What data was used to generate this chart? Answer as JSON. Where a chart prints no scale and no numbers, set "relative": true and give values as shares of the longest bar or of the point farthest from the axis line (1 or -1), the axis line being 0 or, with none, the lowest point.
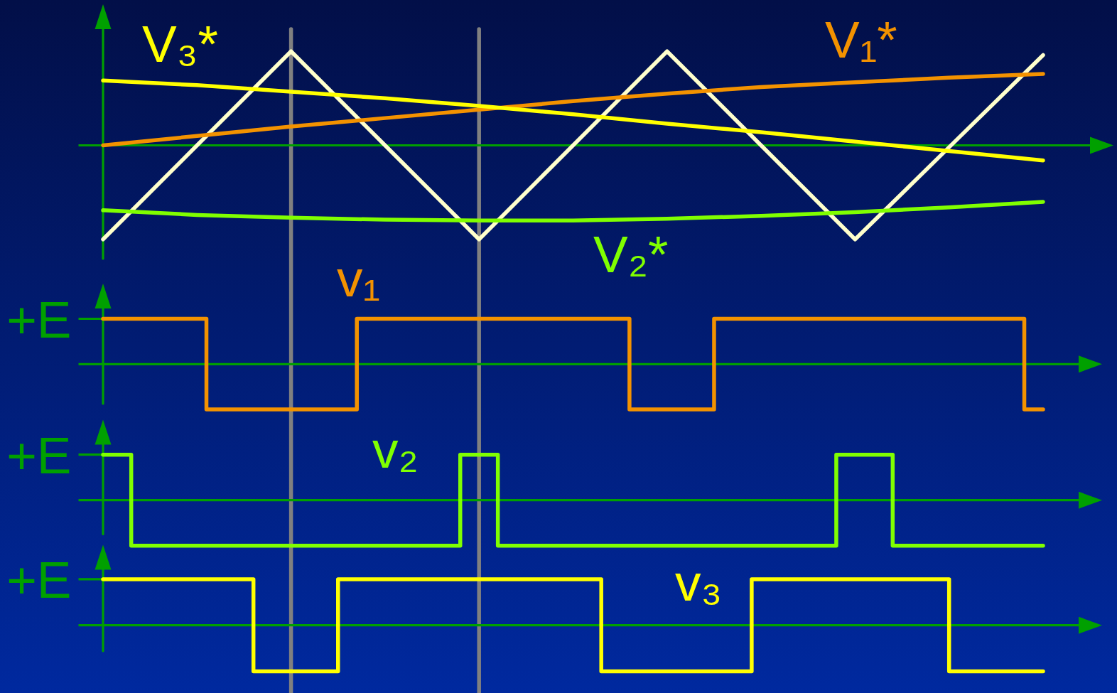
{
  "chart_data": [
    {
      "type": "line",
      "relative": true,
      "categories": [
        null,
        null,
        null,
        null,
        null,
        null,
        null,
        null,
        null,
        null,
        null
      ],
      "ref_lines": [
        {
          "axis": "y",
          "value": 0,
          "color": "#00a000"
        }
      ],
      "series": [
        {
          "color": "#ffffcc",
          "values": [
            -1,
            0,
            1,
            0,
            -1,
            0,
            1,
            0,
            -1,
            -0.02,
            0.96
          ]
        },
        {
          "name": "V₁*",
          "color": "#f39200",
          "values": [
            0,
            0.1,
            0.2,
            0.29,
            0.38,
            0.47,
            0.55,
            0.62,
            0.67,
            0.72,
            0.76
          ]
        },
        {
          "name": "V₂*",
          "color": "#80ff00",
          "values": [
            -0.69,
            -0.74,
            -0.77,
            -0.79,
            -0.8,
            -0.8,
            -0.78,
            -0.75,
            -0.71,
            -0.66,
            -0.6
          ]
        },
        {
          "name": "V₃*",
          "color": "#ffff00",
          "values": [
            0.69,
            0.64,
            0.57,
            0.5,
            0.42,
            0.33,
            0.23,
            0.14,
            0.04,
            -0.06,
            -0.16
          ]
        }
      ]
    },
    {
      "type": "step",
      "relative": true,
      "categories": [
        null,
        null,
        null,
        null,
        null,
        null,
        null,
        null,
        null,
        null,
        null,
        null,
        null,
        null,
        null,
        null,
        null,
        null,
        null,
        null,
        null,
        null,
        null,
        null,
        null,
        null,
        null,
        null,
        null,
        null,
        null,
        null,
        null,
        null,
        null,
        null,
        null,
        null,
        null,
        null,
        null,
        null,
        null,
        null,
        null,
        null,
        null,
        null,
        null,
        null,
        null,
        null,
        null,
        null,
        null,
        null,
        null,
        null,
        null,
        null,
        null,
        null,
        null,
        null,
        null,
        null,
        null,
        null,
        null,
        null,
        null,
        null,
        null,
        null,
        null,
        null,
        null,
        null,
        null,
        null,
        null,
        null,
        null,
        null,
        null,
        null,
        null,
        null,
        null,
        null,
        null,
        null,
        null,
        null,
        null,
        null,
        null,
        null,
        null,
        null,
        null
      ],
      "annotations": [
        "+E"
      ],
      "ref_lines": [
        {
          "axis": "y",
          "value": 0,
          "color": "#00a000"
        }
      ],
      "series": [
        {
          "name": "v₁",
          "color": "#f39200",
          "values": [
            1,
            1,
            1,
            1,
            1,
            1,
            1,
            1,
            1,
            1,
            1,
            -1,
            -1,
            -1,
            -1,
            -1,
            -1,
            -1,
            -1,
            -1,
            -1,
            -1,
            -1,
            -1,
            -1,
            -1,
            -1,
            1,
            1,
            1,
            1,
            1,
            1,
            1,
            1,
            1,
            1,
            1,
            1,
            1,
            1,
            1,
            1,
            1,
            1,
            1,
            1,
            1,
            1,
            1,
            1,
            1,
            1,
            1,
            1,
            1,
            -1,
            -1,
            -1,
            -1,
            -1,
            -1,
            -1,
            -1,
            -1,
            1,
            1,
            1,
            1,
            1,
            1,
            1,
            1,
            1,
            1,
            1,
            1,
            1,
            1,
            1,
            1,
            1,
            1,
            1,
            1,
            1,
            1,
            1,
            1,
            1,
            1,
            1,
            1,
            1,
            1,
            1,
            1,
            1,
            -1,
            -1,
            -1
          ]
        }
      ]
    },
    {
      "type": "step",
      "relative": true,
      "categories": [
        null,
        null,
        null,
        null,
        null,
        null,
        null,
        null,
        null,
        null,
        null,
        null,
        null,
        null,
        null,
        null,
        null,
        null,
        null,
        null,
        null,
        null,
        null,
        null,
        null,
        null,
        null,
        null,
        null,
        null,
        null,
        null,
        null,
        null,
        null,
        null,
        null,
        null,
        null,
        null,
        null,
        null,
        null,
        null,
        null,
        null,
        null,
        null,
        null,
        null,
        null,
        null,
        null,
        null,
        null,
        null,
        null,
        null,
        null,
        null,
        null,
        null,
        null,
        null,
        null,
        null,
        null,
        null,
        null,
        null,
        null,
        null,
        null,
        null,
        null,
        null,
        null,
        null,
        null,
        null,
        null,
        null,
        null,
        null,
        null,
        null,
        null,
        null,
        null,
        null,
        null,
        null,
        null,
        null,
        null,
        null,
        null,
        null,
        null,
        null,
        null
      ],
      "annotations": [
        "+E"
      ],
      "ref_lines": [
        {
          "axis": "y",
          "value": 0,
          "color": "#00a000"
        }
      ],
      "series": [
        {
          "name": "v₂",
          "color": "#80ff00",
          "values": [
            1,
            1,
            1,
            -1,
            -1,
            -1,
            -1,
            -1,
            -1,
            -1,
            -1,
            -1,
            -1,
            -1,
            -1,
            -1,
            -1,
            -1,
            -1,
            -1,
            -1,
            -1,
            -1,
            -1,
            -1,
            -1,
            -1,
            -1,
            -1,
            -1,
            -1,
            -1,
            -1,
            -1,
            -1,
            -1,
            -1,
            -1,
            1,
            1,
            1,
            1,
            -1,
            -1,
            -1,
            -1,
            -1,
            -1,
            -1,
            -1,
            -1,
            -1,
            -1,
            -1,
            -1,
            -1,
            -1,
            -1,
            -1,
            -1,
            -1,
            -1,
            -1,
            -1,
            -1,
            -1,
            -1,
            -1,
            -1,
            -1,
            -1,
            -1,
            -1,
            -1,
            -1,
            -1,
            -1,
            -1,
            1,
            1,
            1,
            1,
            1,
            1,
            -1,
            -1,
            -1,
            -1,
            -1,
            -1,
            -1,
            -1,
            -1,
            -1,
            -1,
            -1,
            -1,
            -1,
            -1,
            -1,
            -1
          ]
        }
      ]
    },
    {
      "type": "step",
      "relative": true,
      "categories": [
        null,
        null,
        null,
        null,
        null,
        null,
        null,
        null,
        null,
        null,
        null,
        null,
        null,
        null,
        null,
        null,
        null,
        null,
        null,
        null,
        null,
        null,
        null,
        null,
        null,
        null,
        null,
        null,
        null,
        null,
        null,
        null,
        null,
        null,
        null,
        null,
        null,
        null,
        null,
        null,
        null,
        null,
        null,
        null,
        null,
        null,
        null,
        null,
        null,
        null,
        null,
        null,
        null,
        null,
        null,
        null,
        null,
        null,
        null,
        null,
        null,
        null,
        null,
        null,
        null,
        null,
        null,
        null,
        null,
        null,
        null,
        null,
        null,
        null,
        null,
        null,
        null,
        null,
        null,
        null,
        null,
        null,
        null,
        null,
        null,
        null,
        null,
        null,
        null,
        null,
        null,
        null,
        null,
        null,
        null,
        null,
        null,
        null,
        null,
        null,
        null
      ],
      "annotations": [
        "+E"
      ],
      "ref_lines": [
        {
          "axis": "y",
          "value": 0,
          "color": "#00a000"
        }
      ],
      "series": [
        {
          "name": "v₃",
          "color": "#ffff00",
          "values": [
            1,
            1,
            1,
            1,
            1,
            1,
            1,
            1,
            1,
            1,
            1,
            1,
            1,
            1,
            1,
            1,
            -1,
            -1,
            -1,
            -1,
            -1,
            -1,
            -1,
            -1,
            -1,
            1,
            1,
            1,
            1,
            1,
            1,
            1,
            1,
            1,
            1,
            1,
            1,
            1,
            1,
            1,
            1,
            1,
            1,
            1,
            1,
            1,
            1,
            1,
            1,
            1,
            1,
            1,
            1,
            -1,
            -1,
            -1,
            -1,
            -1,
            -1,
            -1,
            -1,
            -1,
            -1,
            -1,
            -1,
            -1,
            -1,
            -1,
            -1,
            1,
            1,
            1,
            1,
            1,
            1,
            1,
            1,
            1,
            1,
            1,
            1,
            1,
            1,
            1,
            1,
            1,
            1,
            1,
            1,
            1,
            -1,
            -1,
            -1,
            -1,
            -1,
            -1,
            -1,
            -1,
            -1,
            -1,
            -1
          ]
        }
      ]
    }
  ]
}
